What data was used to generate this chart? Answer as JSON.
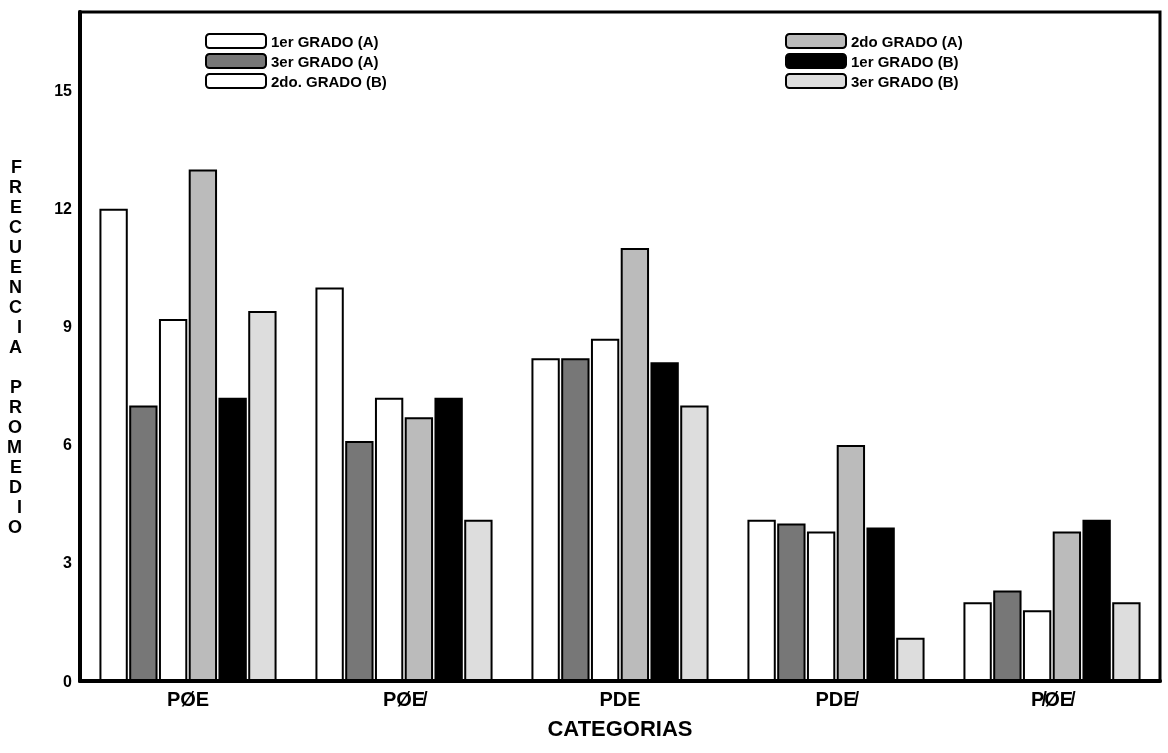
{
  "chart_data": {
    "type": "bar",
    "xlabel": "CATEGORIAS",
    "ylabel": "FRECUENCIA PROMEDIO",
    "categories": [
      "PØE",
      "PØE̸",
      "PDE",
      "PDE̸",
      "P̸ØE̸"
    ],
    "series": [
      {
        "name": "1er GRADO (A)",
        "color": "#ffffff",
        "values": [
          12,
          10,
          8.2,
          4.1,
          2.0
        ]
      },
      {
        "name": "3er GRADO (A)",
        "color": "#777777",
        "values": [
          7.0,
          6.1,
          8.2,
          4.0,
          2.3
        ]
      },
      {
        "name": "2do. GRADO (B)",
        "color": "#ffffff",
        "values": [
          9.2,
          7.2,
          8.7,
          3.8,
          1.8
        ]
      },
      {
        "name": "2do GRADO (A)",
        "color": "#bbbbbb",
        "values": [
          13,
          6.7,
          11,
          6.0,
          3.8
        ]
      },
      {
        "name": "1er GRADO (B)",
        "color": "#000000",
        "values": [
          7.2,
          7.2,
          8.1,
          3.9,
          4.1
        ]
      },
      {
        "name": "3er GRADO (B)",
        "color": "#dddddd",
        "values": [
          9.4,
          4.1,
          7.0,
          1.1,
          2.0
        ]
      }
    ],
    "ylim": [
      0,
      17
    ],
    "yticks": [
      0,
      3,
      6,
      9,
      12,
      15
    ],
    "grid": false,
    "legend": "top"
  }
}
